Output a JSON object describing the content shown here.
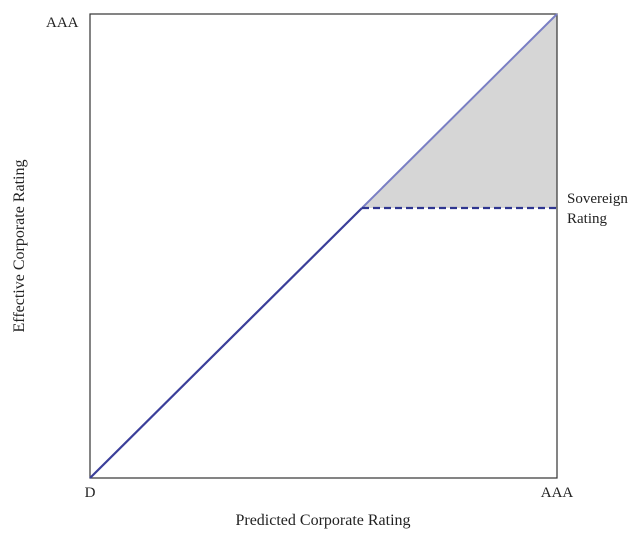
{
  "y_axis": {
    "title": "Effective Corporate Rating",
    "top_label": "AAA"
  },
  "x_axis": {
    "title": "Predicted Corporate Rating",
    "origin_label": "D",
    "end_label": "AAA"
  },
  "annotation": {
    "lines": [
      "Sovereign",
      "Rating"
    ]
  }
}
